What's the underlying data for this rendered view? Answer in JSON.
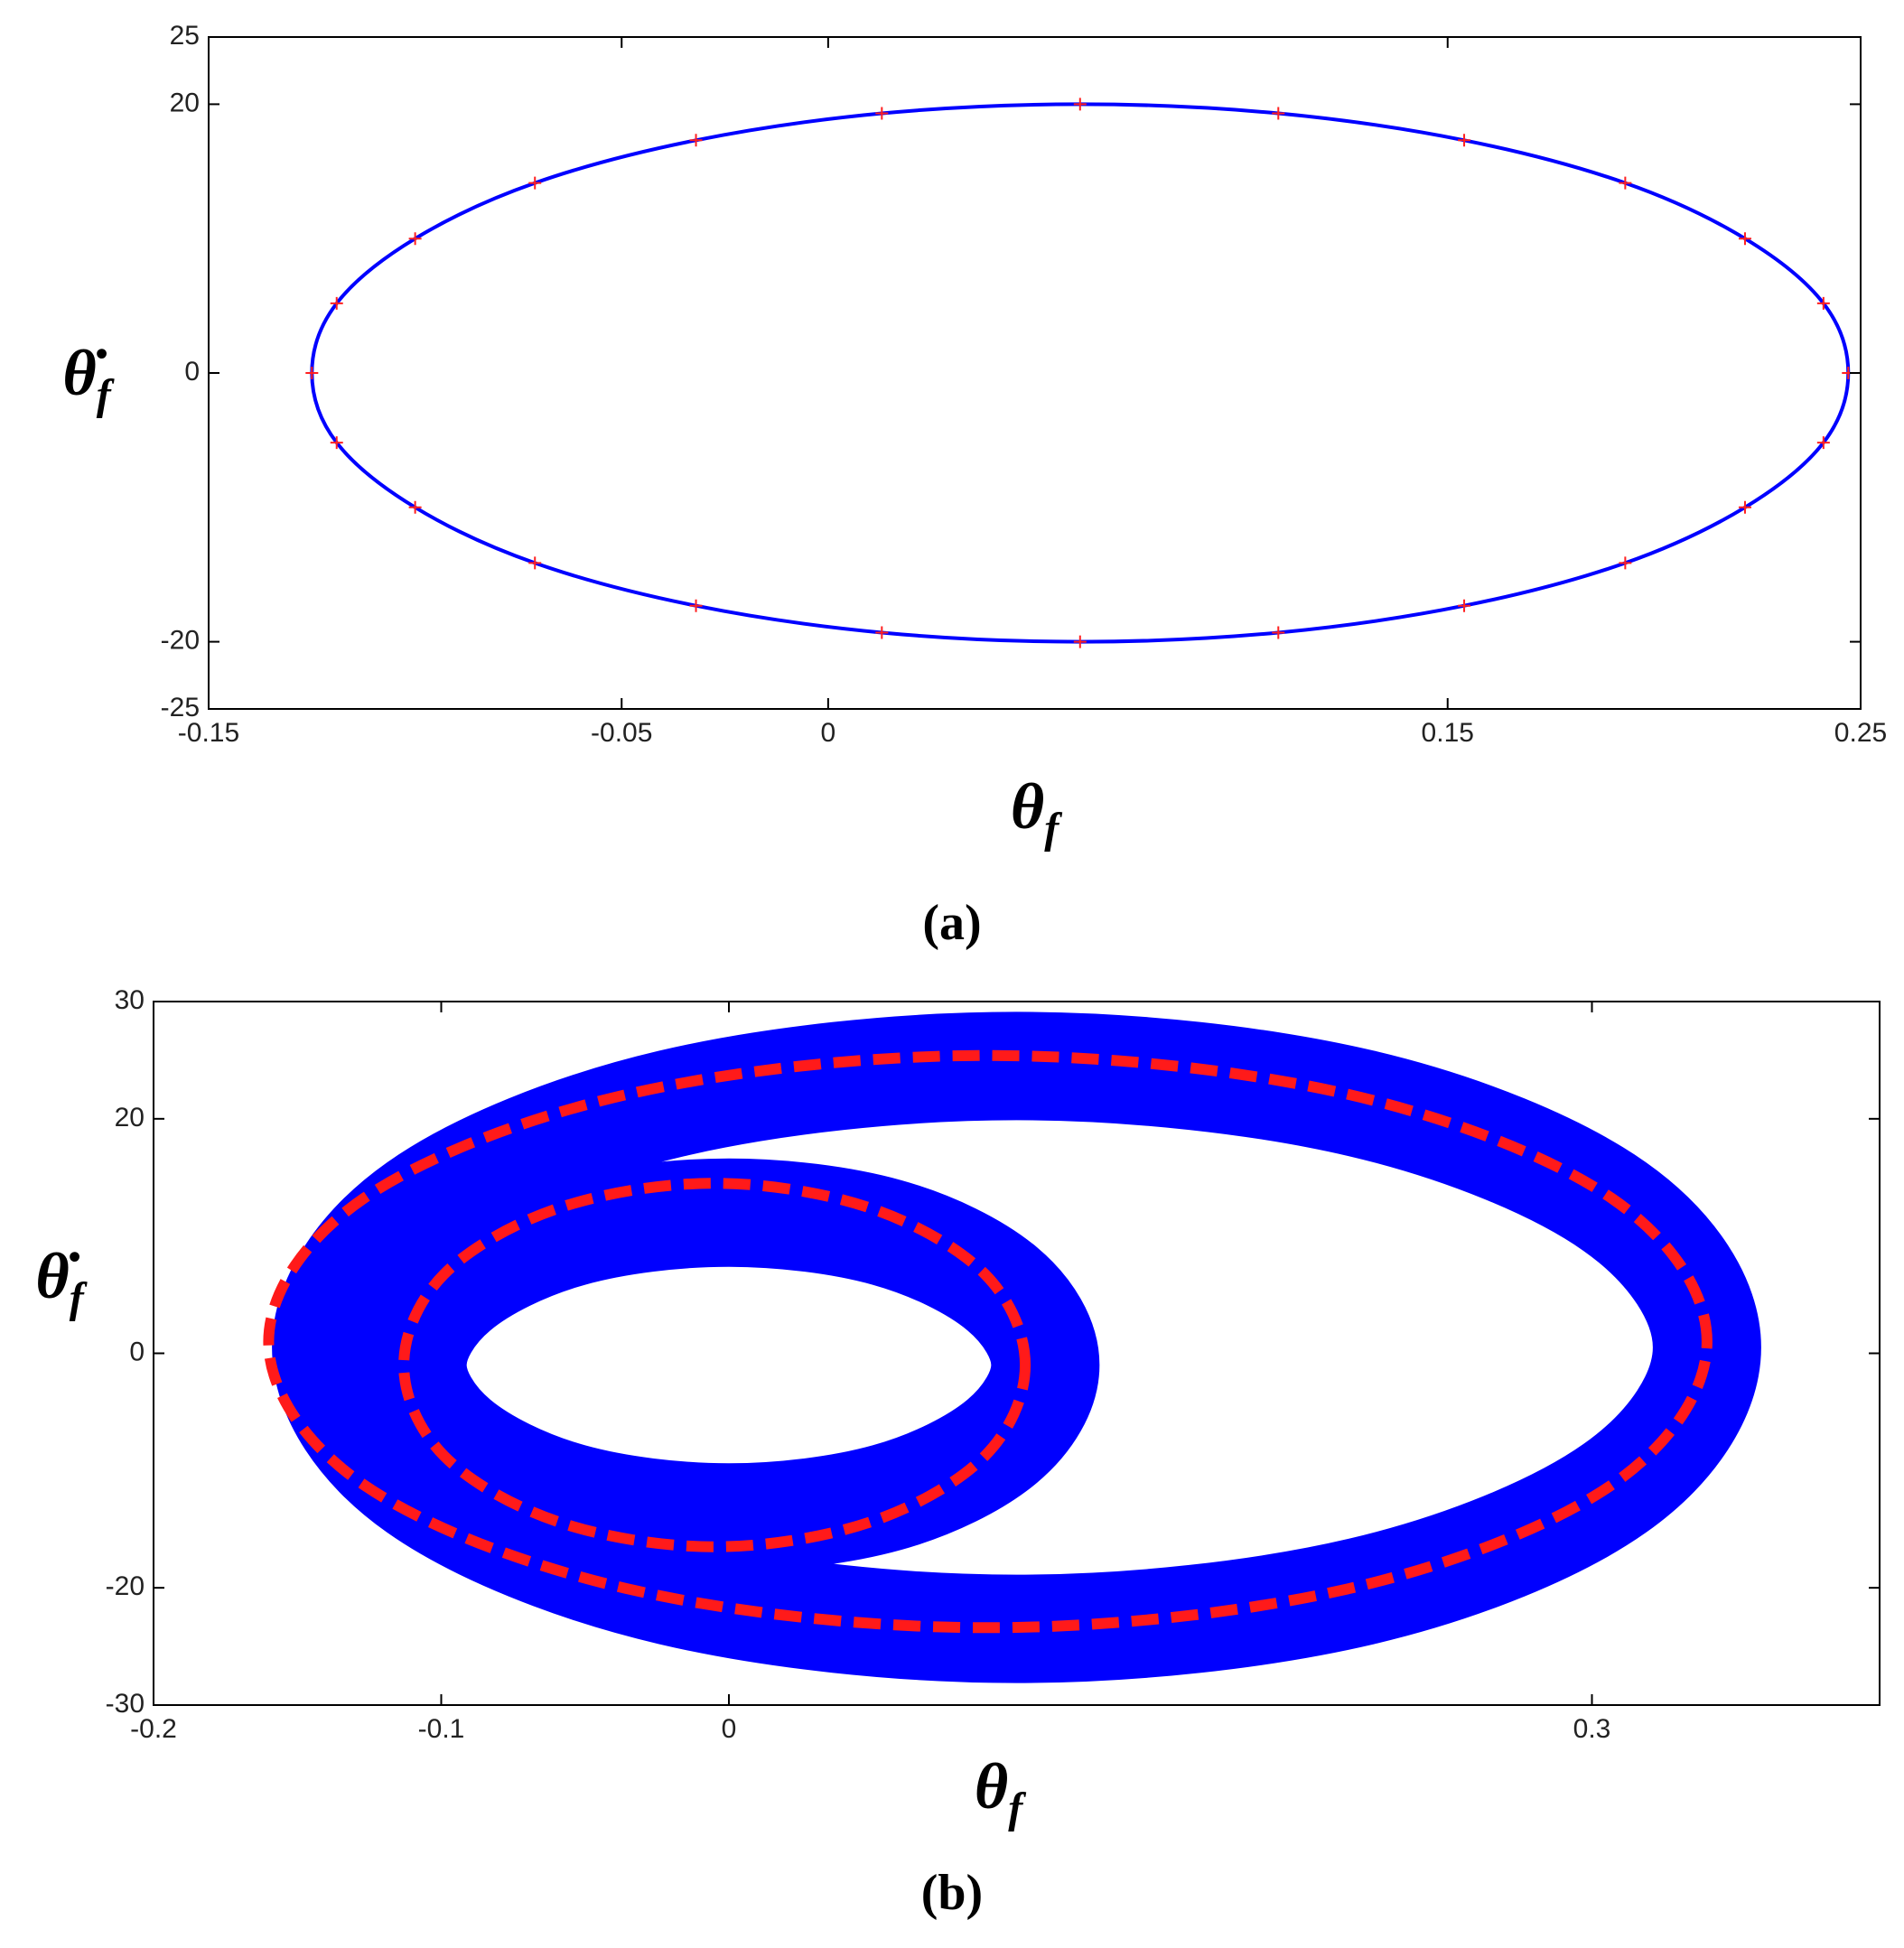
{
  "chart_data": [
    {
      "type": "line",
      "caption": "(a)",
      "xlabel": "θ",
      "xlabel_subscript": "f",
      "ylabel": "θ̇",
      "ylabel_subscript": "f",
      "xlim": [
        -0.15,
        0.25
      ],
      "xticks": [
        -0.15,
        -0.05,
        0,
        0.15,
        0.25
      ],
      "ylim": [
        -25,
        25
      ],
      "yticks": [
        -25,
        -20,
        0,
        20,
        25
      ],
      "grid": false,
      "series": [
        {
          "color": "#0000ff",
          "marker": "none",
          "linestyle": "solid",
          "linewidth": 4,
          "closed": true,
          "x": [
            0.247,
            0.241,
            0.222,
            0.193,
            0.154,
            0.109,
            0.061,
            0.013,
            -0.032,
            -0.071,
            -0.1,
            -0.119,
            -0.125,
            -0.119,
            -0.1,
            -0.071,
            -0.032,
            0.013,
            0.061,
            0.109,
            0.154,
            0.193,
            0.222,
            0.241
          ],
          "y": [
            0,
            5.18,
            10,
            14.14,
            17.32,
            19.32,
            20,
            19.32,
            17.32,
            14.14,
            10,
            5.18,
            0,
            -5.18,
            -10,
            -14.14,
            -17.32,
            -19.32,
            -20,
            -19.32,
            -17.32,
            -14.14,
            -10,
            -5.18
          ]
        },
        {
          "color": "#ff2020",
          "marker": "+",
          "linestyle": "none",
          "linewidth": 2,
          "closed": false,
          "x": [
            0.247,
            0.241,
            0.222,
            0.193,
            0.154,
            0.109,
            0.061,
            0.013,
            -0.032,
            -0.071,
            -0.1,
            -0.119,
            -0.125,
            -0.119,
            -0.1,
            -0.071,
            -0.032,
            0.013,
            0.061,
            0.109,
            0.154,
            0.193,
            0.222,
            0.241
          ],
          "y": [
            0,
            5.18,
            10,
            14.14,
            17.32,
            19.32,
            20,
            19.32,
            17.32,
            14.14,
            10,
            5.18,
            0,
            -5.18,
            -10,
            -14.14,
            -17.32,
            -19.32,
            -20,
            -19.32,
            -17.32,
            -14.14,
            -10,
            -5.18
          ]
        }
      ]
    },
    {
      "type": "line",
      "caption": "(b)",
      "xlabel": "θ",
      "xlabel_subscript": "f",
      "ylabel": "θ̇",
      "ylabel_subscript": "f",
      "xlim": [
        -0.2,
        0.4
      ],
      "xticks": [
        -0.2,
        -0.1,
        0,
        0.3
      ],
      "ylim": [
        -30,
        30
      ],
      "yticks": [
        -30,
        -20,
        0,
        20,
        30
      ],
      "grid": false,
      "series": [
        {
          "color": "#0000ff",
          "marker": "none",
          "linestyle": "solid",
          "linewidth": 120,
          "closed": true,
          "x": [
            0.34,
            0.308,
            0.22,
            0.1,
            -0.02,
            -0.108,
            -0.14,
            -0.108,
            -0.02,
            0.1,
            0.22,
            0.308
          ],
          "y": [
            0.5,
            12.5,
            21.3,
            24.5,
            21.3,
            12.5,
            0.5,
            -11.5,
            -20.3,
            -23.5,
            -20.3,
            -11.5
          ]
        },
        {
          "color": "#0000ff",
          "marker": "none",
          "linestyle": "solid",
          "linewidth": 120,
          "closed": true,
          "x": [
            0.11,
            0.095,
            0.055,
            0,
            -0.055,
            -0.095,
            -0.11,
            -0.095,
            -0.055,
            0,
            0.055,
            0.095
          ],
          "y": [
            -1,
            5.5,
            10.3,
            12,
            10.3,
            5.5,
            -1,
            -7.5,
            -12.3,
            -14,
            -12.3,
            -7.5
          ]
        },
        {
          "color": "#ff1a1a",
          "marker": "none",
          "linestyle": "dashed",
          "linewidth": 12,
          "closed": true,
          "x": [
            0.34,
            0.307,
            0.215,
            0.09,
            -0.035,
            -0.127,
            -0.16,
            -0.127,
            -0.035,
            0.09,
            0.215,
            0.307
          ],
          "y": [
            1,
            13.2,
            22.1,
            25.4,
            22.1,
            13.2,
            1,
            -11.2,
            -20.1,
            -23.4,
            -20.1,
            -11.2
          ]
        },
        {
          "color": "#ff1a1a",
          "marker": "none",
          "linestyle": "dashed",
          "linewidth": 12,
          "closed": true,
          "x": [
            0.103,
            0.089,
            0.049,
            -0.005,
            -0.059,
            -0.099,
            -0.113,
            -0.099,
            -0.059,
            -0.005,
            0.049,
            0.089
          ],
          "y": [
            -1,
            6.75,
            12.4,
            14.5,
            12.4,
            6.75,
            -1,
            -8.75,
            -14.4,
            -16.5,
            -14.4,
            -8.75
          ]
        }
      ]
    }
  ]
}
